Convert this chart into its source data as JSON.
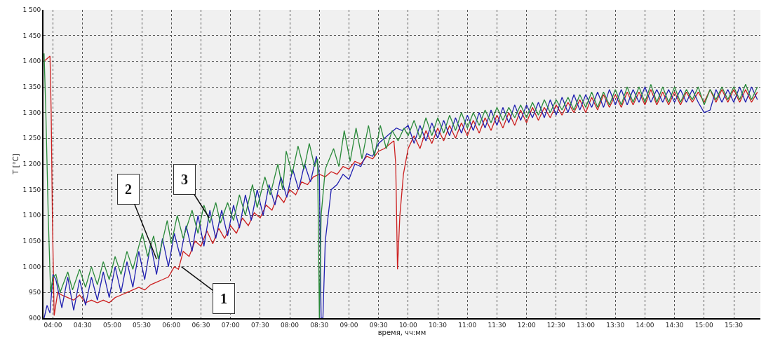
{
  "chart_data": {
    "type": "line",
    "xlabel": "время, чч:мм",
    "ylabel": "T [°C]",
    "xlim": [
      3.84,
      15.95
    ],
    "ylim": [
      900,
      1500
    ],
    "xticks": [
      {
        "value": 4,
        "label": "04:00"
      },
      {
        "value": 4.5,
        "label": "04:30"
      },
      {
        "value": 5,
        "label": "05:00"
      },
      {
        "value": 5.5,
        "label": "05:30"
      },
      {
        "value": 6,
        "label": "06:00"
      },
      {
        "value": 6.5,
        "label": "06:30"
      },
      {
        "value": 7,
        "label": "07:00"
      },
      {
        "value": 7.5,
        "label": "07:30"
      },
      {
        "value": 8,
        "label": "08:00"
      },
      {
        "value": 8.5,
        "label": "08:30"
      },
      {
        "value": 9,
        "label": "09:00"
      },
      {
        "value": 9.5,
        "label": "09:30"
      },
      {
        "value": 10,
        "label": "10:00"
      },
      {
        "value": 10.5,
        "label": "10:30"
      },
      {
        "value": 11,
        "label": "11:00"
      },
      {
        "value": 11.5,
        "label": "11:30"
      },
      {
        "value": 12,
        "label": "12:00"
      },
      {
        "value": 12.5,
        "label": "12:30"
      },
      {
        "value": 13,
        "label": "13:00"
      },
      {
        "value": 13.5,
        "label": "13:30"
      },
      {
        "value": 14,
        "label": "14:00"
      },
      {
        "value": 14.5,
        "label": "14:30"
      },
      {
        "value": 15,
        "label": "15:00"
      },
      {
        "value": 15.5,
        "label": "15:30"
      }
    ],
    "yticks": [
      900,
      950,
      {
        "value": 1000,
        "label": "1 000"
      },
      {
        "value": 1050,
        "label": "1 050"
      },
      {
        "value": 1100,
        "label": "1 100"
      },
      {
        "value": 1150,
        "label": "1 150"
      },
      {
        "value": 1200,
        "label": "1 200"
      },
      {
        "value": 1250,
        "label": "1 250"
      },
      {
        "value": 1300,
        "label": "1 300"
      },
      {
        "value": 1350,
        "label": "1 350"
      },
      {
        "value": 1400,
        "label": "1 400"
      },
      {
        "value": 1450,
        "label": "1 450"
      },
      {
        "value": 1500,
        "label": "1 500"
      }
    ],
    "grid": true,
    "marker": "none",
    "line_style": "solid",
    "annotations": [
      {
        "text": "1",
        "x": 6.17,
        "y": 1000
      },
      {
        "text": "2",
        "x": 5.75,
        "y": 1015
      },
      {
        "text": "3",
        "x": 6.64,
        "y": 1095
      }
    ],
    "series": [
      {
        "color": "#cc2020",
        "x": [
          3.85,
          3.9,
          3.95,
          3.97,
          3.99,
          4.02,
          4.08,
          4.15,
          4.25,
          4.35,
          4.45,
          4.55,
          4.65,
          4.75,
          4.85,
          4.95,
          5.05,
          5.15,
          5.25,
          5.35,
          5.45,
          5.55,
          5.65,
          5.75,
          5.85,
          5.95,
          6.05,
          6.12,
          6.2,
          6.3,
          6.4,
          6.5,
          6.6,
          6.7,
          6.8,
          6.9,
          7.0,
          7.1,
          7.2,
          7.3,
          7.4,
          7.5,
          7.6,
          7.7,
          7.8,
          7.9,
          8.0,
          8.1,
          8.2,
          8.3,
          8.4,
          8.5,
          8.6,
          8.7,
          8.8,
          8.9,
          9.0,
          9.1,
          9.2,
          9.3,
          9.4,
          9.5,
          9.6,
          9.7,
          9.76,
          9.79,
          9.82,
          9.86,
          9.92,
          10.0,
          10.1,
          10.2,
          10.3,
          10.4,
          10.5,
          10.6,
          10.7,
          10.8,
          10.9,
          11.0,
          11.1,
          11.2,
          11.3,
          11.4,
          11.5,
          11.6,
          11.7,
          11.8,
          11.9,
          12.0,
          12.1,
          12.2,
          12.3,
          12.4,
          12.5,
          12.6,
          12.7,
          12.8,
          12.9,
          13.0,
          13.1,
          13.2,
          13.3,
          13.4,
          13.5,
          13.6,
          13.7,
          13.8,
          13.9,
          14.0,
          14.1,
          14.2,
          14.3,
          14.4,
          14.5,
          14.6,
          14.7,
          14.8,
          14.9,
          15.0,
          15.1,
          15.2,
          15.3,
          15.4,
          15.5,
          15.6,
          15.7,
          15.8,
          15.9
        ],
        "values": [
          1400,
          1405,
          1410,
          1300,
          1100,
          905,
          950,
          945,
          940,
          935,
          945,
          930,
          935,
          930,
          935,
          930,
          940,
          945,
          950,
          955,
          960,
          955,
          965,
          970,
          975,
          980,
          1000,
          995,
          1030,
          1020,
          1050,
          1040,
          1070,
          1045,
          1075,
          1055,
          1080,
          1065,
          1095,
          1080,
          1105,
          1095,
          1120,
          1110,
          1140,
          1125,
          1150,
          1140,
          1165,
          1160,
          1175,
          1180,
          1175,
          1185,
          1180,
          1195,
          1190,
          1205,
          1200,
          1215,
          1210,
          1225,
          1230,
          1240,
          1245,
          1200,
          995,
          1100,
          1180,
          1230,
          1255,
          1230,
          1265,
          1240,
          1270,
          1245,
          1275,
          1250,
          1280,
          1255,
          1285,
          1260,
          1290,
          1265,
          1295,
          1270,
          1300,
          1275,
          1305,
          1280,
          1310,
          1285,
          1310,
          1290,
          1315,
          1295,
          1320,
          1300,
          1325,
          1300,
          1330,
          1305,
          1335,
          1310,
          1335,
          1310,
          1340,
          1315,
          1340,
          1315,
          1345,
          1315,
          1340,
          1315,
          1340,
          1315,
          1340,
          1320,
          1340,
          1320,
          1345,
          1320,
          1345,
          1320,
          1345,
          1320,
          1345,
          1320,
          1340
        ]
      },
      {
        "color": "#2020b0",
        "x": [
          3.85,
          3.9,
          3.95,
          4.0,
          4.05,
          4.15,
          4.25,
          4.35,
          4.45,
          4.55,
          4.65,
          4.75,
          4.85,
          4.95,
          5.05,
          5.15,
          5.25,
          5.35,
          5.45,
          5.55,
          5.65,
          5.75,
          5.85,
          5.95,
          6.05,
          6.15,
          6.25,
          6.35,
          6.45,
          6.55,
          6.65,
          6.75,
          6.85,
          6.95,
          7.05,
          7.15,
          7.25,
          7.35,
          7.45,
          7.55,
          7.65,
          7.75,
          7.85,
          7.95,
          8.05,
          8.15,
          8.25,
          8.35,
          8.45,
          8.5,
          8.53,
          8.56,
          8.6,
          8.7,
          8.8,
          8.9,
          9.0,
          9.1,
          9.2,
          9.3,
          9.4,
          9.5,
          9.6,
          9.7,
          9.8,
          9.9,
          10.0,
          10.1,
          10.2,
          10.3,
          10.4,
          10.5,
          10.6,
          10.7,
          10.8,
          10.9,
          11.0,
          11.1,
          11.2,
          11.3,
          11.4,
          11.5,
          11.6,
          11.7,
          11.8,
          11.9,
          12.0,
          12.1,
          12.2,
          12.3,
          12.4,
          12.5,
          12.6,
          12.7,
          12.8,
          12.9,
          13.0,
          13.1,
          13.2,
          13.3,
          13.4,
          13.5,
          13.6,
          13.7,
          13.8,
          13.9,
          14.0,
          14.1,
          14.2,
          14.3,
          14.4,
          14.5,
          14.6,
          14.7,
          14.8,
          14.9,
          15.0,
          15.1,
          15.2,
          15.3,
          15.4,
          15.5,
          15.6,
          15.7,
          15.8,
          15.9
        ],
        "values": [
          900,
          925,
          910,
          985,
          975,
          920,
          980,
          915,
          975,
          925,
          980,
          935,
          990,
          940,
          1000,
          950,
          1010,
          960,
          1030,
          975,
          1045,
          985,
          1055,
          1000,
          1065,
          1020,
          1080,
          1030,
          1100,
          1040,
          1110,
          1055,
          1110,
          1060,
          1120,
          1075,
          1140,
          1090,
          1150,
          1100,
          1160,
          1120,
          1175,
          1135,
          1190,
          1150,
          1200,
          1165,
          1215,
          1180,
          900,
          900,
          1050,
          1150,
          1160,
          1180,
          1170,
          1200,
          1195,
          1220,
          1215,
          1240,
          1250,
          1260,
          1270,
          1265,
          1275,
          1240,
          1275,
          1245,
          1280,
          1250,
          1285,
          1255,
          1290,
          1260,
          1295,
          1265,
          1300,
          1270,
          1305,
          1275,
          1310,
          1280,
          1315,
          1285,
          1315,
          1290,
          1320,
          1290,
          1325,
          1295,
          1330,
          1300,
          1335,
          1305,
          1335,
          1310,
          1340,
          1310,
          1345,
          1315,
          1345,
          1315,
          1345,
          1320,
          1350,
          1320,
          1345,
          1320,
          1345,
          1320,
          1345,
          1320,
          1345,
          1320,
          1300,
          1305,
          1345,
          1320,
          1345,
          1320,
          1350,
          1320,
          1350,
          1325
        ]
      },
      {
        "color": "#2a8a3a",
        "x": [
          3.85,
          3.88,
          3.92,
          3.96,
          4.0,
          4.05,
          4.12,
          4.25,
          4.33,
          4.45,
          4.55,
          4.65,
          4.75,
          4.85,
          4.95,
          5.05,
          5.15,
          5.25,
          5.35,
          5.45,
          5.51,
          5.6,
          5.7,
          5.78,
          5.93,
          6.0,
          6.1,
          6.2,
          6.35,
          6.45,
          6.55,
          6.65,
          6.75,
          6.83,
          6.95,
          7.05,
          7.15,
          7.25,
          7.37,
          7.45,
          7.58,
          7.67,
          7.8,
          7.88,
          7.94,
          8.04,
          8.14,
          8.24,
          8.33,
          8.42,
          8.47,
          8.5,
          8.53,
          8.6,
          8.74,
          8.83,
          8.92,
          9.02,
          9.12,
          9.22,
          9.33,
          9.43,
          9.53,
          9.63,
          9.73,
          9.83,
          9.93,
          10.0,
          10.1,
          10.2,
          10.3,
          10.4,
          10.5,
          10.6,
          10.7,
          10.8,
          10.9,
          11.0,
          11.1,
          11.2,
          11.3,
          11.4,
          11.5,
          11.6,
          11.7,
          11.8,
          11.9,
          12.0,
          12.1,
          12.2,
          12.3,
          12.4,
          12.5,
          12.6,
          12.7,
          12.8,
          12.9,
          13.0,
          13.1,
          13.2,
          13.3,
          13.4,
          13.5,
          13.6,
          13.7,
          13.8,
          13.9,
          14.0,
          14.1,
          14.2,
          14.3,
          14.4,
          14.5,
          14.6,
          14.7,
          14.8,
          14.9,
          15.0,
          15.1,
          15.2,
          15.3,
          15.4,
          15.5,
          15.6,
          15.7,
          15.8,
          15.9
        ],
        "values": [
          1415,
          1300,
          1100,
          950,
          980,
          985,
          950,
          990,
          955,
          995,
          960,
          1000,
          965,
          1010,
          975,
          1020,
          985,
          1030,
          995,
          1040,
          1065,
          1020,
          1060,
          1015,
          1090,
          1045,
          1100,
          1055,
          1110,
          1065,
          1120,
          1085,
          1125,
          1085,
          1125,
          1090,
          1140,
          1100,
          1160,
          1115,
          1175,
          1140,
          1200,
          1150,
          1225,
          1180,
          1235,
          1190,
          1240,
          1195,
          1210,
          900,
          1100,
          1190,
          1230,
          1195,
          1265,
          1205,
          1270,
          1210,
          1275,
          1215,
          1275,
          1230,
          1265,
          1245,
          1270,
          1255,
          1285,
          1250,
          1290,
          1255,
          1290,
          1260,
          1295,
          1265,
          1300,
          1270,
          1300,
          1275,
          1305,
          1280,
          1310,
          1285,
          1310,
          1290,
          1315,
          1290,
          1320,
          1295,
          1325,
          1300,
          1325,
          1305,
          1330,
          1305,
          1335,
          1310,
          1340,
          1310,
          1340,
          1315,
          1345,
          1315,
          1350,
          1320,
          1350,
          1320,
          1355,
          1320,
          1350,
          1320,
          1350,
          1320,
          1345,
          1325,
          1350,
          1315,
          1345,
          1325,
          1350,
          1325,
          1350,
          1325,
          1355,
          1325,
          1350
        ]
      }
    ]
  }
}
